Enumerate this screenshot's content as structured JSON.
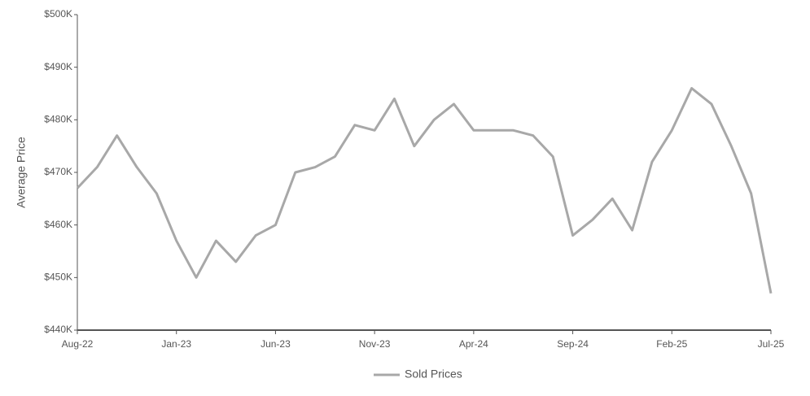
{
  "chart_data": {
    "type": "line",
    "y_label": "Average Price",
    "categories": [
      "Aug-22",
      null,
      null,
      null,
      null,
      "Jan-23",
      null,
      null,
      null,
      null,
      "Jun-23",
      null,
      null,
      null,
      null,
      "Nov-23",
      null,
      null,
      null,
      null,
      "Apr-24",
      null,
      null,
      null,
      null,
      "Sep-24",
      null,
      null,
      null,
      null,
      "Feb-25",
      null,
      null,
      null,
      null,
      "Jul-25"
    ],
    "series": [
      {
        "name": "Sold Prices",
        "color": "#a8a8a8",
        "values": [
          467000,
          471000,
          477000,
          471000,
          466000,
          457000,
          450000,
          457000,
          453000,
          458000,
          460000,
          470000,
          471000,
          473000,
          479000,
          478000,
          484000,
          475000,
          480000,
          483000,
          478000,
          478000,
          478000,
          477000,
          473000,
          458000,
          461000,
          465000,
          459000,
          472000,
          478000,
          486000,
          483000,
          475000,
          466000,
          447000
        ]
      }
    ],
    "ylim": [
      440000,
      500000
    ],
    "yticks": [
      {
        "value": 440000,
        "label": "$440K"
      },
      {
        "value": 450000,
        "label": "$450K"
      },
      {
        "value": 460000,
        "label": "$460K"
      },
      {
        "value": 470000,
        "label": "$470K"
      },
      {
        "value": 480000,
        "label": "$480K"
      },
      {
        "value": 490000,
        "label": "$490K"
      },
      {
        "value": 500000,
        "label": "$500K"
      }
    ],
    "legend": "bottom"
  }
}
